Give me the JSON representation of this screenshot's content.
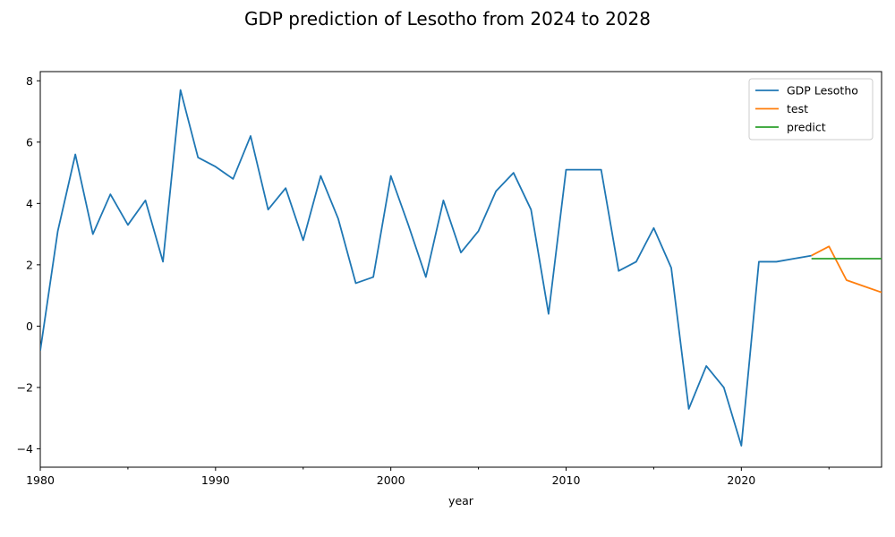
{
  "chart_data": {
    "type": "line",
    "title": "GDP prediction of Lesotho from 2024 to 2028",
    "xlabel": "year",
    "ylabel": "",
    "xlim": [
      1980,
      2028
    ],
    "ylim": [
      -4.6,
      8.3
    ],
    "x_ticks": [
      1980,
      1990,
      2000,
      2010,
      2020
    ],
    "x_minor_ticks": [
      1985,
      1995,
      2005,
      2015,
      2025
    ],
    "y_ticks": [
      -4,
      -2,
      0,
      2,
      4,
      6,
      8
    ],
    "grid": false,
    "legend_position": "top-right",
    "series": [
      {
        "name": "GDP Lesotho",
        "color": "#1f77b4",
        "x": [
          1980,
          1981,
          1982,
          1983,
          1984,
          1985,
          1986,
          1987,
          1988,
          1989,
          1990,
          1991,
          1992,
          1993,
          1994,
          1995,
          1996,
          1997,
          1998,
          1999,
          2000,
          2001,
          2002,
          2003,
          2004,
          2005,
          2006,
          2007,
          2008,
          2009,
          2010,
          2011,
          2012,
          2013,
          2014,
          2015,
          2016,
          2017,
          2018,
          2019,
          2020,
          2021,
          2022,
          2023,
          2024
        ],
        "values": [
          -0.8,
          3.1,
          5.6,
          3.0,
          4.3,
          3.3,
          4.1,
          2.1,
          7.7,
          5.5,
          5.2,
          4.8,
          6.2,
          3.8,
          4.5,
          2.8,
          4.9,
          3.5,
          1.4,
          1.6,
          4.9,
          3.3,
          1.6,
          4.1,
          2.4,
          3.1,
          4.4,
          5.0,
          3.8,
          0.4,
          5.1,
          5.1,
          5.1,
          1.8,
          2.1,
          3.2,
          1.9,
          -2.7,
          -1.3,
          -2.0,
          -3.9,
          2.1,
          2.1,
          2.2,
          2.3
        ]
      },
      {
        "name": "test",
        "color": "#ff7f0e",
        "x": [
          2024,
          2025,
          2026,
          2027,
          2028
        ],
        "values": [
          2.3,
          2.6,
          1.5,
          1.3,
          1.1
        ]
      },
      {
        "name": "predict",
        "color": "#2ca02c",
        "x": [
          2024,
          2025,
          2026,
          2027,
          2028
        ],
        "values": [
          2.2,
          2.2,
          2.2,
          2.2,
          2.2
        ]
      }
    ]
  }
}
